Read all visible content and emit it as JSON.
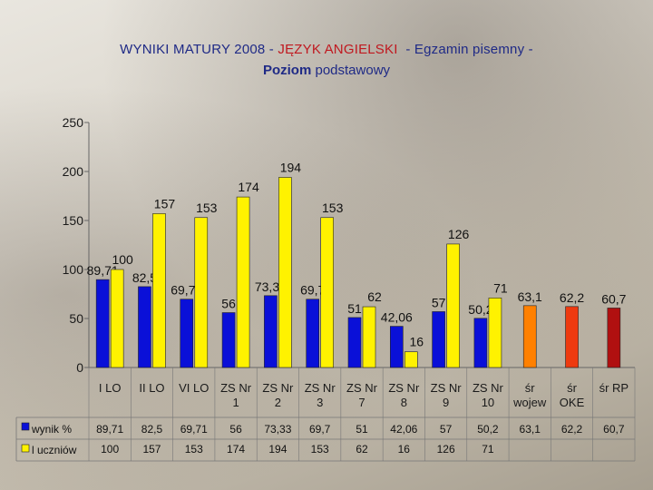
{
  "chart_data": {
    "type": "bar",
    "title_part1": "WYNIKI MATURY 2008 - ",
    "title_subject": "JĘZYK ANGIELSKI",
    "title_part2": "- Egzamin pisemny -",
    "subtitle_bold": "Poziom",
    "subtitle_rest": "podstawowy",
    "ylim": [
      0,
      250
    ],
    "yticks": [
      "0",
      "50",
      "100",
      "150",
      "200",
      "250"
    ],
    "categories": [
      [
        "I LO"
      ],
      [
        "II LO"
      ],
      [
        "VI LO"
      ],
      [
        "ZS Nr",
        "1"
      ],
      [
        "ZS Nr",
        "2"
      ],
      [
        "ZS Nr",
        "3"
      ],
      [
        "ZS Nr",
        "7"
      ],
      [
        "ZS Nr",
        "8"
      ],
      [
        "ZS Nr",
        "9"
      ],
      [
        "ZS Nr",
        "10"
      ],
      [
        "śr",
        "wojew"
      ],
      [
        "śr",
        "OKE"
      ],
      [
        "śr  RP"
      ]
    ],
    "series": [
      {
        "name": "wynik %",
        "values": [
          89.71,
          82.5,
          69.71,
          56,
          73.33,
          69.7,
          51,
          42.06,
          57,
          50.2,
          63.1,
          62.2,
          60.7
        ],
        "labels": [
          "89,71",
          "82,5",
          "69,71",
          "56",
          "73,33",
          "69,7",
          "51",
          "42,06",
          "57",
          "50,2",
          "63,1",
          "62,2",
          "60,7"
        ]
      },
      {
        "name": "l uczniów",
        "values": [
          100,
          157,
          153,
          174,
          194,
          153,
          62,
          16,
          126,
          71,
          null,
          null,
          null
        ],
        "labels": [
          "100",
          "157",
          "153",
          "174",
          "194",
          "153",
          "62",
          "16",
          "126",
          "71",
          "",
          "",
          ""
        ]
      }
    ],
    "colors": {
      "wynik": "#0a10d8",
      "uczniow": "#fff200",
      "wojew": "#ff8000",
      "oke": "#ee3a10",
      "rp": "#b01010",
      "title": "#1f2a86",
      "subject": "#c0181f"
    }
  }
}
